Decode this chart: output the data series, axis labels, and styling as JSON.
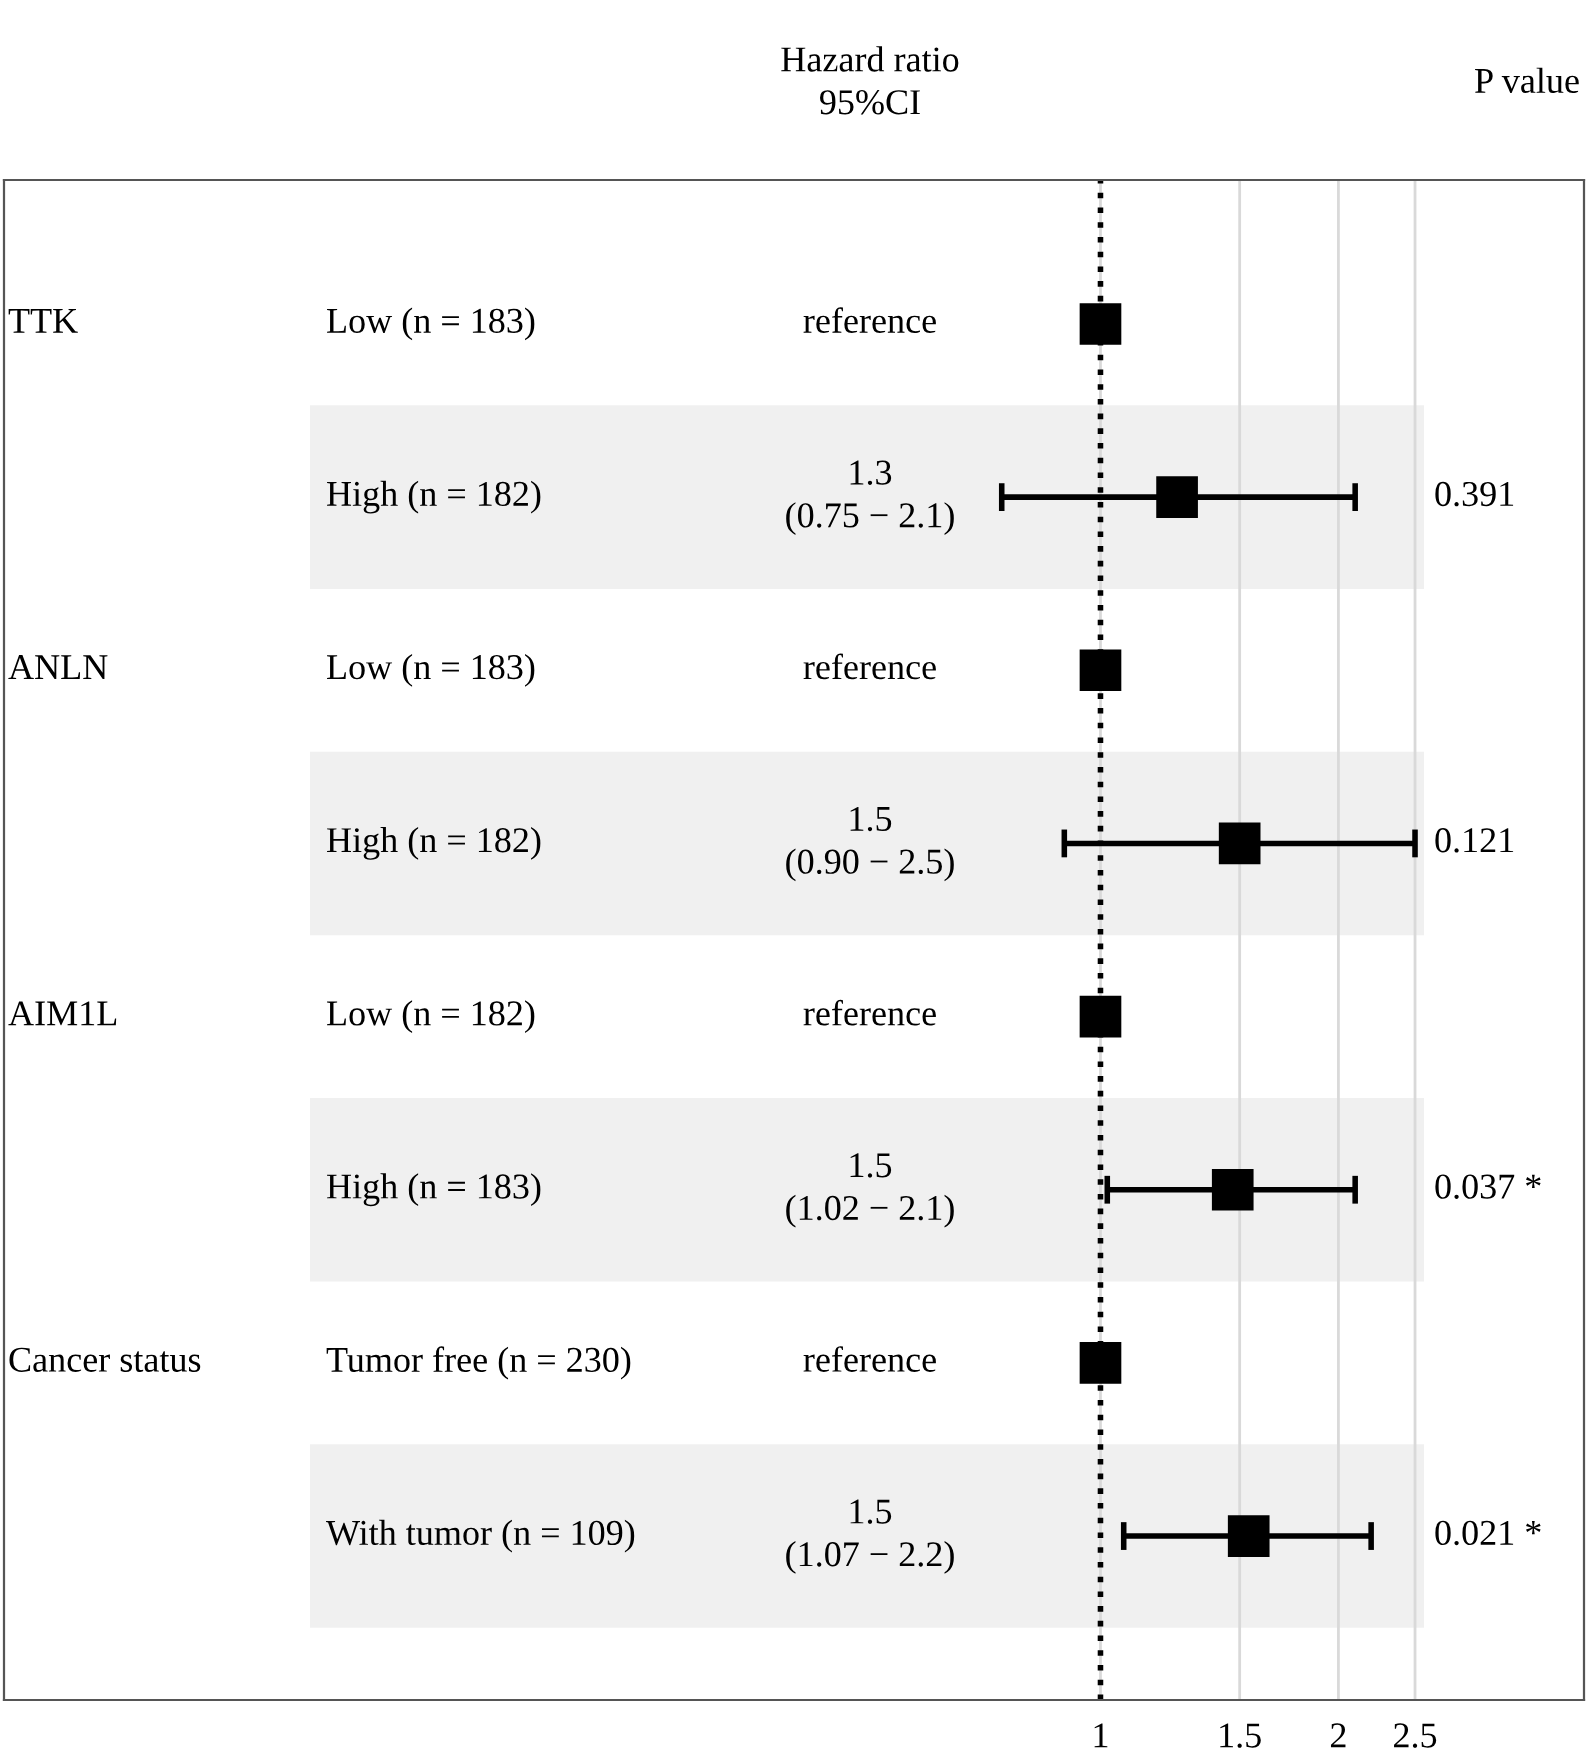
{
  "chart_data": {
    "type": "scatter",
    "orientation": "horizontal",
    "log": "x",
    "categories": [
      "Low (n = 183)",
      "High (n = 182)",
      "Low (n = 183)",
      "High (n = 182)",
      "Low (n = 182)",
      "High (n = 183)",
      "Tumor free (n = 230)",
      "With tumor (n = 109)"
    ],
    "values": [
      1,
      1.25,
      1,
      1.5,
      1,
      1.47,
      1,
      1.54
    ],
    "errors": [
      null,
      [
        0.75,
        2.1
      ],
      null,
      [
        0.9,
        2.5
      ],
      null,
      [
        1.02,
        2.1
      ],
      null,
      [
        1.07,
        2.2
      ]
    ],
    "color": "#000000",
    "marker": "square",
    "xlim": [
      0.041,
      4.09
    ],
    "xticks": [
      1,
      1.5,
      2,
      2.5
    ],
    "grid": "x",
    "tick_labels": "x",
    "ref_lines": [
      {
        "axis": "x",
        "value": 1,
        "label": null,
        "color": "#000000",
        "line_style": "dotted"
      }
    ],
    "annotations": [
      "TTK",
      "ANLN",
      "AIM1L",
      "Cancer status",
      "reference",
      "1.3\n(0.75 − 2.1)",
      "reference",
      "1.5\n(0.90 − 2.5)",
      "reference",
      "1.5\n(1.02 − 2.1)",
      "reference",
      "1.5\n(1.07 − 2.2)",
      "0.391",
      "0.121",
      "0.037 *",
      "0.021 *",
      "Hazard ratio\n95%CI",
      "P value"
    ]
  }
}
